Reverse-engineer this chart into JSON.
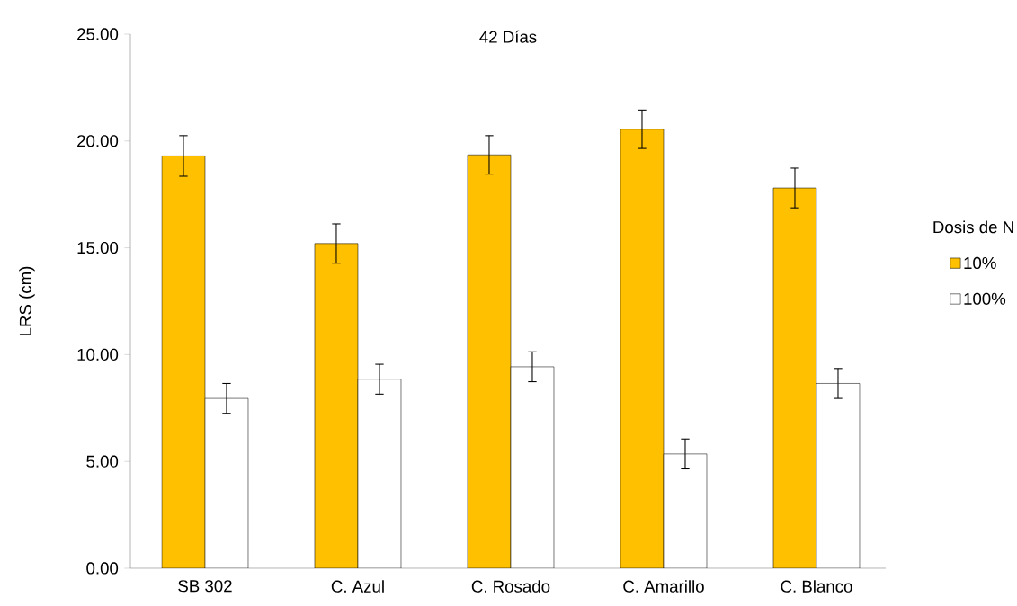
{
  "chart_data": {
    "type": "bar",
    "title": "42 Días",
    "ylabel": "LRS (cm)",
    "legend_title": "Dosis de N",
    "categories": [
      "SB 302",
      "C. Azul",
      "C. Rosado",
      "C. Amarillo",
      "C. Blanco"
    ],
    "series": [
      {
        "name": "10%",
        "color": "#ffc000",
        "values": [
          19.3,
          15.2,
          19.35,
          20.55,
          17.8
        ],
        "errors": [
          0.95,
          0.92,
          0.9,
          0.9,
          0.93
        ]
      },
      {
        "name": "100%",
        "color": "#ffffff",
        "values": [
          7.95,
          8.85,
          9.43,
          5.35,
          8.65
        ],
        "errors": [
          0.7,
          0.7,
          0.7,
          0.7,
          0.7
        ]
      }
    ],
    "ylim": [
      0,
      25
    ],
    "yticks": [
      {
        "value": 0,
        "label": "0.00"
      },
      {
        "value": 5,
        "label": "5.00"
      },
      {
        "value": 10,
        "label": "10.00"
      },
      {
        "value": 15,
        "label": "15.00"
      },
      {
        "value": 20,
        "label": "20.00"
      },
      {
        "value": 25,
        "label": "25.00"
      }
    ],
    "legend": "right",
    "grid": false
  }
}
